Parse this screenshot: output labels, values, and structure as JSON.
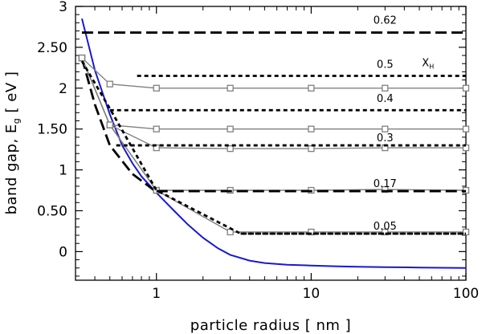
{
  "chart_data": {
    "type": "line",
    "xlabel": "particle radius  [  nm  ]",
    "ylabel": "band gap,    E",
    "ylabel_subscript": "g",
    "ylabel_unit": " [  eV  ]",
    "x_scale": "log",
    "xlim": [
      0.3,
      100
    ],
    "ylim": [
      -0.35,
      3.0
    ],
    "x_ticks": [
      1,
      10,
      100
    ],
    "x_tick_labels": [
      "1",
      "10",
      "100"
    ],
    "y_ticks": [
      0,
      0.5,
      1,
      1.5,
      2,
      2.5,
      3
    ],
    "y_tick_labels": [
      "0",
      "0.50",
      "1",
      "1.50",
      "2",
      "2.50",
      "3"
    ],
    "grid": false,
    "legend_label": "X",
    "legend_label_subscript": "H",
    "colors": {
      "model_curve": "#1a1ac8",
      "data_series": "#808080",
      "reference": "#000000"
    },
    "series": [
      {
        "style": "solid-blue",
        "x": [
          0.33,
          0.4,
          0.5,
          0.6,
          0.7,
          0.8,
          1.0,
          1.3,
          1.6,
          2.0,
          2.5,
          3.0,
          4.0,
          5.0,
          7.0,
          10.0,
          15.0,
          20.0,
          30.0,
          50.0,
          70.0,
          100.0
        ],
        "y": [
          2.85,
          2.22,
          1.68,
          1.3,
          1.08,
          0.92,
          0.72,
          0.5,
          0.33,
          0.17,
          0.04,
          -0.04,
          -0.11,
          -0.14,
          -0.16,
          -0.17,
          -0.18,
          -0.185,
          -0.19,
          -0.195,
          -0.198,
          -0.2
        ]
      },
      {
        "style": "long-dash",
        "x": [
          0.33,
          0.4,
          0.5,
          0.7,
          1.0
        ],
        "y": [
          2.37,
          1.8,
          1.3,
          0.95,
          0.73
        ]
      },
      {
        "style": "marker-gray",
        "x": [
          0.33,
          0.5,
          1.0,
          3.0,
          10.0,
          30.0,
          100.0
        ],
        "y": [
          2.37,
          2.05,
          2.0,
          2.0,
          2.0,
          2.0,
          2.0
        ]
      },
      {
        "style": "marker-gray",
        "x": [
          0.33,
          0.5,
          1.0,
          3.0,
          10.0,
          30.0,
          100.0
        ],
        "y": [
          2.37,
          1.55,
          1.5,
          1.5,
          1.5,
          1.5,
          1.5
        ]
      },
      {
        "style": "marker-gray",
        "x": [
          0.33,
          0.5,
          1.0,
          3.0,
          10.0,
          30.0,
          100.0
        ],
        "y": [
          2.37,
          1.55,
          1.27,
          1.26,
          1.26,
          1.27,
          1.27
        ]
      },
      {
        "style": "marker-gray",
        "x": [
          0.33,
          0.5,
          1.0,
          3.0,
          10.0,
          30.0,
          100.0
        ],
        "y": [
          2.37,
          1.55,
          0.75,
          0.75,
          0.75,
          0.76,
          0.75
        ]
      },
      {
        "style": "marker-gray",
        "x": [
          0.33,
          0.5,
          1.0,
          3.0,
          10.0,
          30.0,
          100.0
        ],
        "y": [
          2.37,
          1.55,
          0.75,
          0.24,
          0.24,
          0.24,
          0.24
        ]
      },
      {
        "style": "short-dash",
        "x": [
          0.33,
          0.5,
          1.0,
          3.5,
          100.0
        ],
        "y": [
          2.33,
          1.75,
          0.75,
          0.22,
          0.22
        ]
      }
    ],
    "reference_lines": [
      {
        "label": "0.62",
        "style": "long-dash",
        "y": 2.68,
        "x_start": 0.33,
        "label_x": 30,
        "label_y": 2.84
      },
      {
        "label": "0.5",
        "style": "short-dash",
        "y": 2.15,
        "x_start": 0.75,
        "label_x": 30,
        "label_y": 2.3
      },
      {
        "label": "0.4",
        "style": "short-dash",
        "y": 1.73,
        "x_start": 0.5,
        "label_x": 30,
        "label_y": 1.88
      },
      {
        "label": "0.3",
        "style": "short-dash",
        "y": 1.3,
        "x_start": 0.55,
        "label_x": 30,
        "label_y": 1.4
      },
      {
        "label": "0.17",
        "style": "long-dash",
        "y": 0.74,
        "x_start": 1.0,
        "label_x": 30,
        "label_y": 0.84
      },
      {
        "label": "0.05",
        "style": "short-dash",
        "y": 0.22,
        "x_start": 3.5,
        "label_x": 30,
        "label_y": 0.32
      }
    ],
    "legend_label_pos": {
      "x": 52,
      "y": 2.27
    }
  }
}
